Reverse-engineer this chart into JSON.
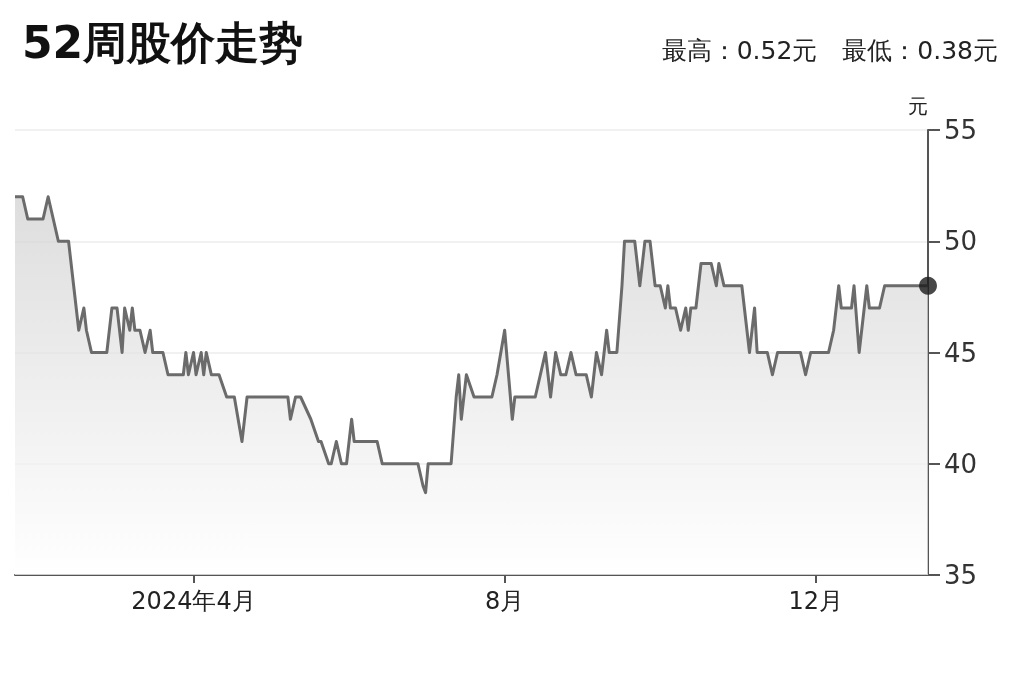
{
  "chart_data": {
    "type": "area",
    "title": "52周股价走势",
    "subtitle": "最高：0.52元　最低：0.38元",
    "ylabel": "元",
    "xlim": [
      "2024-01-22",
      "2025-01-14"
    ],
    "xticks": [
      {
        "value": "2024-04-01",
        "label": "2024年4月"
      },
      {
        "value": "2024-08-01",
        "label": "8月"
      },
      {
        "value": "2024-12-01",
        "label": "12月"
      }
    ],
    "ylim": [
      35,
      55
    ],
    "yticks": [
      35,
      40,
      45,
      50,
      55
    ],
    "grid": "y",
    "marker": "none",
    "line_style": "solid",
    "series": [
      {
        "color": "#6b6b6b",
        "x": [
          "2024-01-22",
          "2024-01-25",
          "2024-01-27",
          "2024-02-02",
          "2024-02-04",
          "2024-02-06",
          "2024-02-08",
          "2024-02-12",
          "2024-02-14",
          "2024-02-16",
          "2024-02-18",
          "2024-02-19",
          "2024-02-21",
          "2024-02-27",
          "2024-02-29",
          "2024-03-02",
          "2024-03-04",
          "2024-03-05",
          "2024-03-07",
          "2024-03-08",
          "2024-03-09",
          "2024-03-11",
          "2024-03-13",
          "2024-03-15",
          "2024-03-16",
          "2024-03-20",
          "2024-03-22",
          "2024-03-28",
          "2024-03-29",
          "2024-03-30",
          "2024-04-01",
          "2024-04-02",
          "2024-04-04",
          "2024-04-05",
          "2024-04-06",
          "2024-04-08",
          "2024-04-11",
          "2024-04-14",
          "2024-04-17",
          "2024-04-20",
          "2024-04-22",
          "2024-05-08",
          "2024-05-09",
          "2024-05-11",
          "2024-05-13",
          "2024-05-17",
          "2024-05-20",
          "2024-05-21",
          "2024-05-24",
          "2024-05-25",
          "2024-05-27",
          "2024-05-29",
          "2024-05-31",
          "2024-06-02",
          "2024-06-03",
          "2024-06-05",
          "2024-06-07",
          "2024-06-12",
          "2024-06-14",
          "2024-06-28",
          "2024-06-30",
          "2024-07-01",
          "2024-07-02",
          "2024-07-04",
          "2024-07-11",
          "2024-07-13",
          "2024-07-14",
          "2024-07-15",
          "2024-07-17",
          "2024-07-20",
          "2024-07-27",
          "2024-07-29",
          "2024-08-01",
          "2024-08-04",
          "2024-08-05",
          "2024-08-13",
          "2024-08-15",
          "2024-08-17",
          "2024-08-19",
          "2024-08-21",
          "2024-08-23",
          "2024-08-25",
          "2024-08-27",
          "2024-08-29",
          "2024-09-02",
          "2024-09-04",
          "2024-09-06",
          "2024-09-08",
          "2024-09-10",
          "2024-09-11",
          "2024-09-14",
          "2024-09-16",
          "2024-09-17",
          "2024-09-21",
          "2024-09-23",
          "2024-09-25",
          "2024-09-27",
          "2024-09-29",
          "2024-10-01",
          "2024-10-03",
          "2024-10-04",
          "2024-10-05",
          "2024-10-07",
          "2024-10-09",
          "2024-10-11",
          "2024-10-12",
          "2024-10-13",
          "2024-10-15",
          "2024-10-17",
          "2024-10-21",
          "2024-10-23",
          "2024-10-24",
          "2024-10-26",
          "2024-11-02",
          "2024-11-04",
          "2024-11-05",
          "2024-11-07",
          "2024-11-08",
          "2024-11-12",
          "2024-11-14",
          "2024-11-16",
          "2024-11-20",
          "2024-11-25",
          "2024-11-27",
          "2024-11-29",
          "2024-12-06",
          "2024-12-08",
          "2024-12-10",
          "2024-12-11",
          "2024-12-15",
          "2024-12-16",
          "2024-12-18",
          "2024-12-21",
          "2024-12-22",
          "2024-12-26",
          "2024-12-28",
          "2025-01-14"
        ],
        "values": [
          52,
          52,
          51,
          51,
          52,
          51,
          50,
          50,
          48,
          46,
          47,
          46,
          45,
          45,
          47,
          47,
          45,
          47,
          46,
          47,
          46,
          46,
          45,
          46,
          45,
          45,
          44,
          44,
          45,
          44,
          45,
          44,
          45,
          44,
          45,
          44,
          44,
          43,
          43,
          41,
          43,
          43,
          42,
          43,
          43,
          42,
          41,
          41,
          40,
          40,
          41,
          40,
          40,
          42,
          41,
          41,
          41,
          41,
          40,
          40,
          39,
          38.7,
          40,
          40,
          40,
          43,
          44,
          42,
          44,
          43,
          43,
          44,
          46,
          42,
          43,
          43,
          44,
          45,
          43,
          45,
          44,
          44,
          45,
          44,
          44,
          43,
          45,
          44,
          46,
          45,
          45,
          48,
          50,
          50,
          48,
          50,
          50,
          48,
          48,
          47,
          48,
          47,
          47,
          46,
          47,
          46,
          47,
          47,
          49,
          49,
          48,
          49,
          48,
          48,
          46,
          45,
          47,
          45,
          45,
          44,
          45,
          45,
          45,
          44,
          45,
          45,
          46,
          48,
          47,
          47,
          48,
          45,
          48,
          47,
          47,
          48,
          48
        ]
      },
      {
        "type": "scatter",
        "marker": "circle",
        "color": "#1a1a1a",
        "x": [
          "2025-01-14"
        ],
        "values": [
          48
        ]
      }
    ]
  }
}
